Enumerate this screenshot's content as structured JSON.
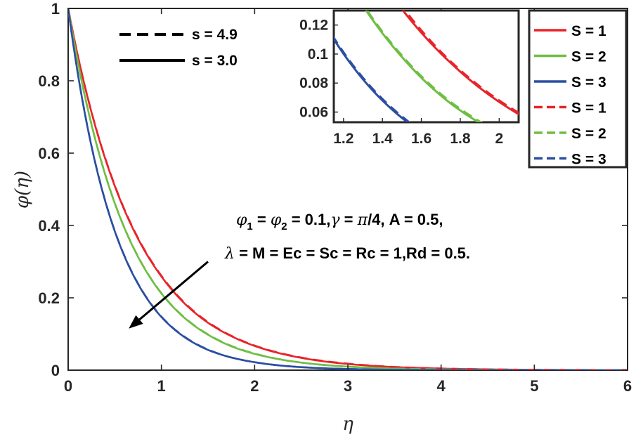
{
  "chart_data": {
    "type": "line",
    "xlabel": "η",
    "ylabel": "φ(η)",
    "xlim": [
      0,
      6
    ],
    "ylim": [
      0,
      1
    ],
    "xticks": [
      "0",
      "1",
      "2",
      "3",
      "4",
      "5",
      "6"
    ],
    "yticks": [
      "0",
      "0.2",
      "0.4",
      "0.6",
      "0.8",
      "1"
    ],
    "grid": false,
    "x": [
      0,
      0.25,
      0.5,
      0.75,
      1,
      1.25,
      1.5,
      1.75,
      2,
      2.5,
      3,
      3.5,
      4,
      4.5,
      5,
      5.5,
      6
    ],
    "series": [
      {
        "name": "S = 1",
        "style": "solid",
        "color": "#e8242a",
        "values": [
          1,
          0.713,
          0.509,
          0.363,
          0.259,
          0.184,
          0.131,
          0.094,
          0.067,
          0.034,
          0.017,
          0.0086,
          0.0044,
          0.0022,
          0.0011,
          0.0006,
          0.0003
        ]
      },
      {
        "name": "S = 2",
        "style": "solid",
        "color": "#6fbe44",
        "values": [
          1,
          0.679,
          0.461,
          0.313,
          0.212,
          0.144,
          0.098,
          0.066,
          0.045,
          0.021,
          0.0097,
          0.0045,
          0.0021,
          0.001,
          0.0005,
          0.0002,
          0.0001
        ]
      },
      {
        "name": "S = 3",
        "style": "solid",
        "color": "#2b4ea2",
        "values": [
          1,
          0.619,
          0.384,
          0.238,
          0.147,
          0.091,
          0.056,
          0.035,
          0.022,
          0.0083,
          0.0032,
          0.0012,
          0.0005,
          0.0002,
          0.0001,
          0,
          0
        ]
      },
      {
        "name": "S = 1",
        "style": "dashed",
        "color": "#e8242a",
        "values": [
          1,
          0.714,
          0.511,
          0.365,
          0.261,
          0.186,
          0.133,
          0.095,
          0.068,
          0.035,
          0.018,
          0.009,
          0.0046,
          0.0023,
          0.0012,
          0.0006,
          0.0003
        ]
      },
      {
        "name": "S = 2",
        "style": "dashed",
        "color": "#6fbe44",
        "values": [
          1,
          0.68,
          0.462,
          0.314,
          0.213,
          0.145,
          0.099,
          0.067,
          0.046,
          0.021,
          0.0099,
          0.0046,
          0.0022,
          0.001,
          0.0005,
          0.0002,
          0.0001
        ]
      },
      {
        "name": "S = 3",
        "style": "dashed",
        "color": "#2b4ea2",
        "values": [
          1,
          0.62,
          0.385,
          0.239,
          0.148,
          0.092,
          0.057,
          0.035,
          0.022,
          0.0084,
          0.0033,
          0.0012,
          0.0005,
          0.0002,
          0.0001,
          0,
          0
        ]
      }
    ],
    "legend": {
      "placement": "top-right",
      "entries": [
        "S = 1",
        "S = 2",
        "S = 3",
        "S = 1",
        "S = 2",
        "S = 3"
      ]
    },
    "style_legend": {
      "placement": "top-left",
      "entries": [
        {
          "label": "s = 4.9",
          "style": "dashed"
        },
        {
          "label": "s = 3.0",
          "style": "solid"
        }
      ]
    },
    "annotation": {
      "line1": {
        "phi": "φ",
        "sub1": "1",
        "eq": " = ",
        "sub2": "2",
        "rest1": " = 0.1,",
        "gamma": "γ",
        "rest2": " = ",
        "pi": "π",
        "rest3": "/4, A = 0.5,"
      },
      "line2": {
        "lambda": "λ",
        "rest": " = M = Ec = Sc = Rc = 1,Rd = 0.5."
      }
    },
    "arrow": {
      "from": [
        1.5,
        0.3
      ],
      "to": [
        0.65,
        0.115
      ],
      "color": "#000000"
    },
    "inset": {
      "xlim": [
        1.15,
        2.1
      ],
      "ylim": [
        0.053,
        0.13
      ],
      "xticks": [
        "1.2",
        "1.4",
        "1.6",
        "1.8",
        "2"
      ],
      "yticks": [
        "0.06",
        "0.08",
        "0.1",
        "0.12"
      ]
    }
  }
}
